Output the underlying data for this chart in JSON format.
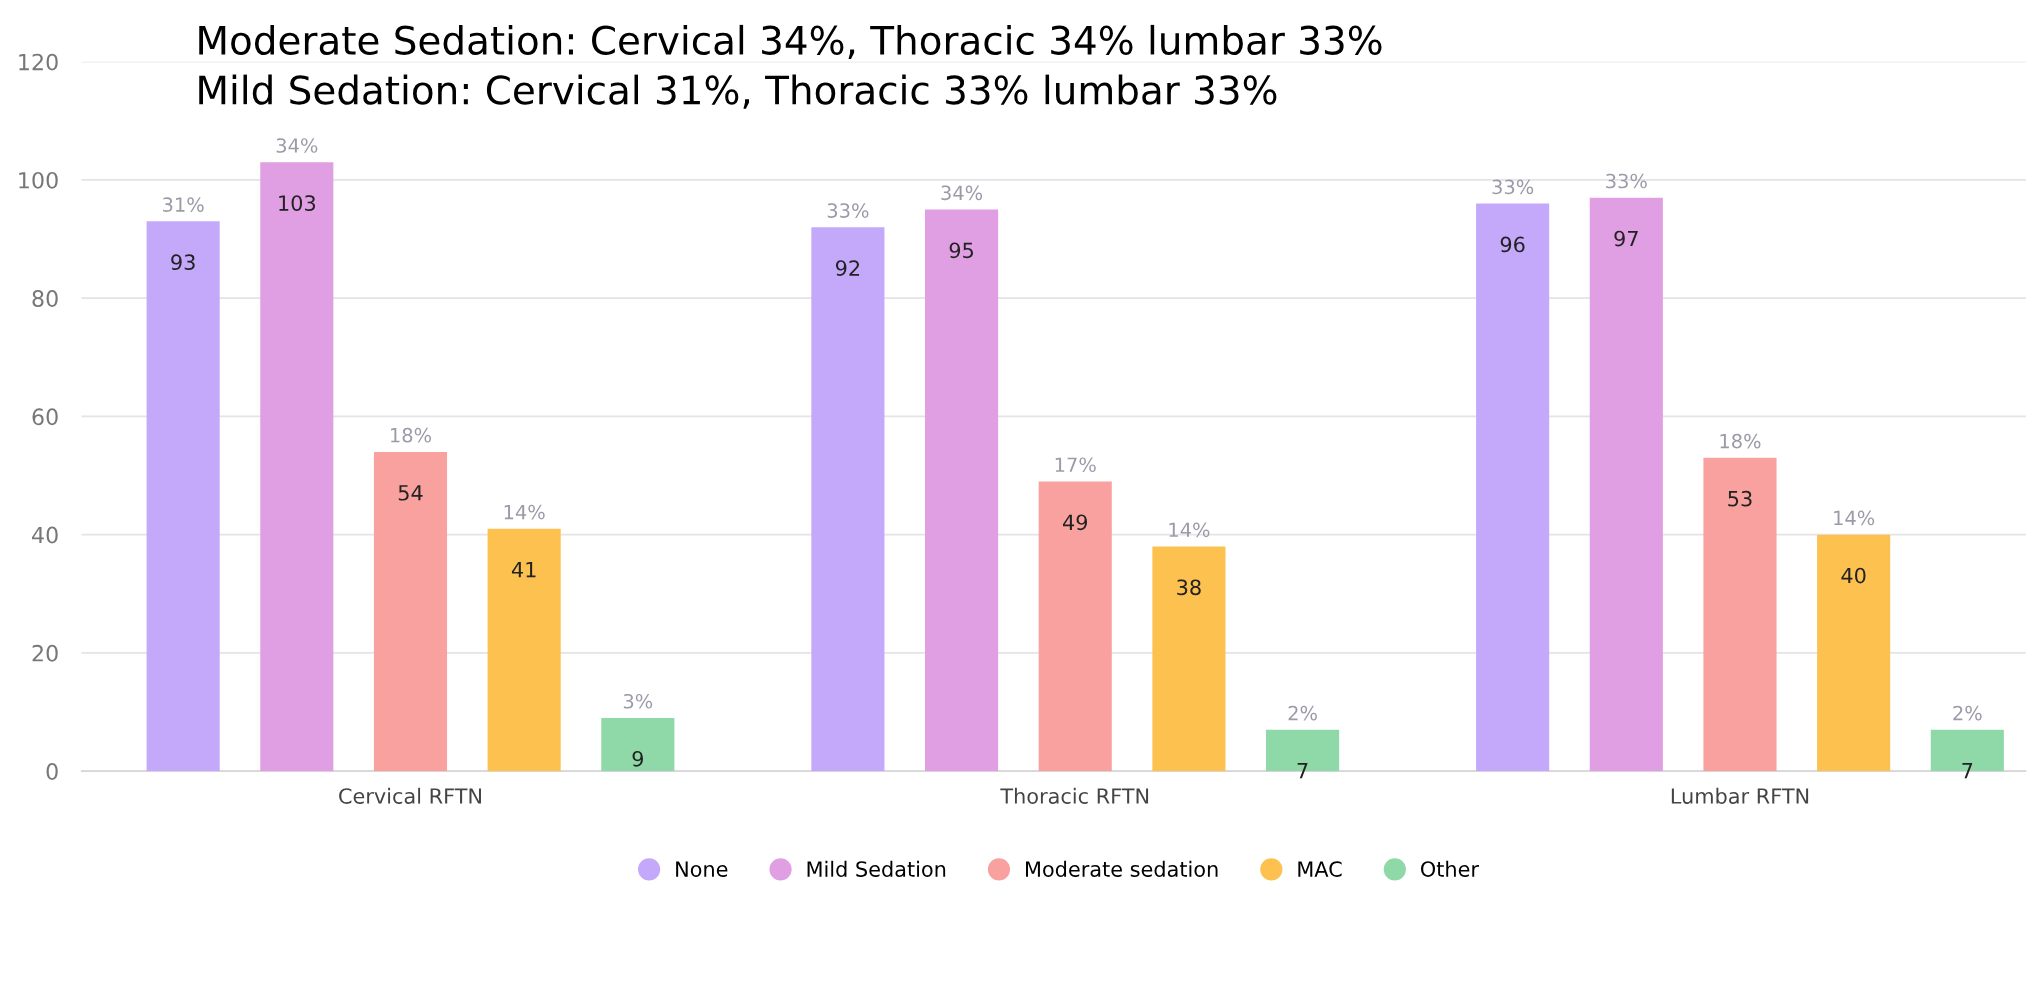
{
  "chart_data": {
    "type": "bar",
    "categories": [
      "Cervical RFTN",
      "Thoracic RFTN",
      "Lumbar RFTN"
    ],
    "series": [
      {
        "name": "None",
        "color": "#c4a9fb",
        "values": [
          93,
          92,
          96
        ]
      },
      {
        "name": "Mild Sedation",
        "color": "#e09fe3",
        "values": [
          103,
          95,
          97
        ]
      },
      {
        "name": "Moderate sedation",
        "color": "#f9a19e",
        "values": [
          54,
          49,
          53
        ]
      },
      {
        "name": "MAC",
        "color": "#fdc150",
        "values": [
          41,
          38,
          40
        ]
      },
      {
        "name": "Other",
        "color": "#8fd9a8",
        "values": [
          9,
          7,
          7
        ]
      }
    ],
    "ylim": [
      0,
      120
    ],
    "yticks": [
      0,
      20,
      40,
      60,
      80,
      100,
      120
    ],
    "grid": "y",
    "legend": "bottom",
    "data_labels": true,
    "annotations": [
      "Moderate Sedation: Cervical 34%, Thoracic 34% lumbar 33%",
      "Mild Sedation: Cervical 31%, Thoracic 33% lumbar 33%",
      "31%",
      "34%",
      "18%",
      "14%",
      "3%",
      "33%",
      "34%",
      "17%",
      "14%",
      "2%",
      "33%",
      "33%",
      "18%",
      "14%",
      "2%"
    ]
  }
}
